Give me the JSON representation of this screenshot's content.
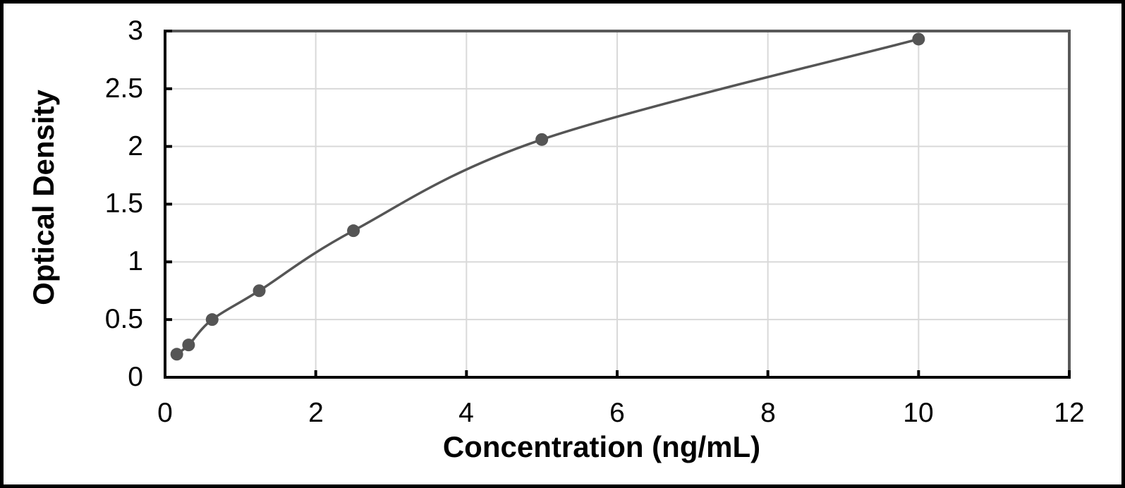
{
  "chart_data": {
    "type": "line",
    "title": "",
    "xlabel": "Concentration (ng/mL)",
    "ylabel": "Optical Density",
    "x": [
      0.156,
      0.3125,
      0.625,
      1.25,
      2.5,
      5,
      10
    ],
    "y": [
      0.2,
      0.28,
      0.5,
      0.75,
      1.27,
      2.06,
      2.93
    ],
    "xlim": [
      0,
      12
    ],
    "ylim": [
      0,
      3
    ],
    "x_ticks": [
      0,
      2,
      4,
      6,
      8,
      10,
      12
    ],
    "y_ticks": [
      0,
      0.5,
      1,
      1.5,
      2,
      2.5,
      3
    ],
    "x_tick_labels": [
      "0",
      "2",
      "4",
      "6",
      "8",
      "10",
      "12"
    ],
    "y_tick_labels": [
      "0",
      "0.5",
      "1",
      "1.5",
      "2",
      "2.5",
      "3"
    ],
    "grid": true,
    "legend": "none",
    "marker": "circle",
    "colors": {
      "line": "#555555",
      "marker": "#555555",
      "gridline": "#d9d9d9",
      "axis": "#000000",
      "plot_border": "#595959",
      "frame": "#000000",
      "background": "#ffffff"
    }
  }
}
